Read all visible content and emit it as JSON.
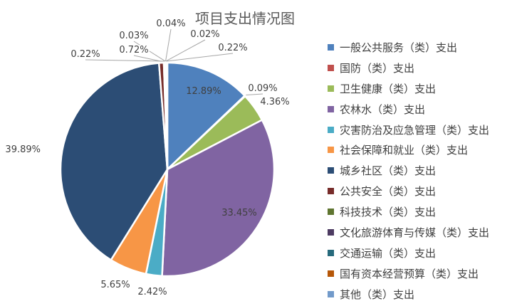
{
  "chart_data": {
    "type": "pie",
    "title": "项目支出情况图",
    "legend_position": "right",
    "slices": [
      {
        "label": "一般公共服务（类）支出",
        "value": 12.89,
        "value_label": "12.89%",
        "color": "#4F81BD"
      },
      {
        "label": "国防（类）支出",
        "value": 0.09,
        "value_label": "0.09%",
        "color": "#C0504D"
      },
      {
        "label": "卫生健康（类）支出",
        "value": 4.36,
        "value_label": "4.36%",
        "color": "#9BBB59"
      },
      {
        "label": "农林水（类）支出",
        "value": 33.45,
        "value_label": "33.45%",
        "color": "#8064A2"
      },
      {
        "label": "灾害防治及应急管理（类）支出",
        "value": 2.42,
        "value_label": "2.42%",
        "color": "#4BACC6"
      },
      {
        "label": "社会保障和就业（类）支出",
        "value": 5.65,
        "value_label": "5.65%",
        "color": "#F79646"
      },
      {
        "label": "城乡社区（类）支出",
        "value": 39.89,
        "value_label": "39.89%",
        "color": "#2C4D75"
      },
      {
        "label": "公共安全（类）支出",
        "value": 0.72,
        "value_label": "0.72%",
        "color": "#772C2A"
      },
      {
        "label": "科技技术（类）支出",
        "value": 0.22,
        "value_label": "0.22%",
        "color": "#5F7530"
      },
      {
        "label": "文化旅游体育与传媒（类）支出",
        "value": 0.03,
        "value_label": "0.03%",
        "color": "#4D3B62"
      },
      {
        "label": "交通运输（类）支出",
        "value": 0.04,
        "value_label": "0.04%",
        "color": "#276A7C"
      },
      {
        "label": "国有资本经营预算（类）支出",
        "value": 0.02,
        "value_label": "0.02%",
        "color": "#B65708"
      },
      {
        "label": "其他（类）支出",
        "value": 0.22,
        "value_label": "0.22%",
        "color": "#729ACA"
      }
    ]
  }
}
